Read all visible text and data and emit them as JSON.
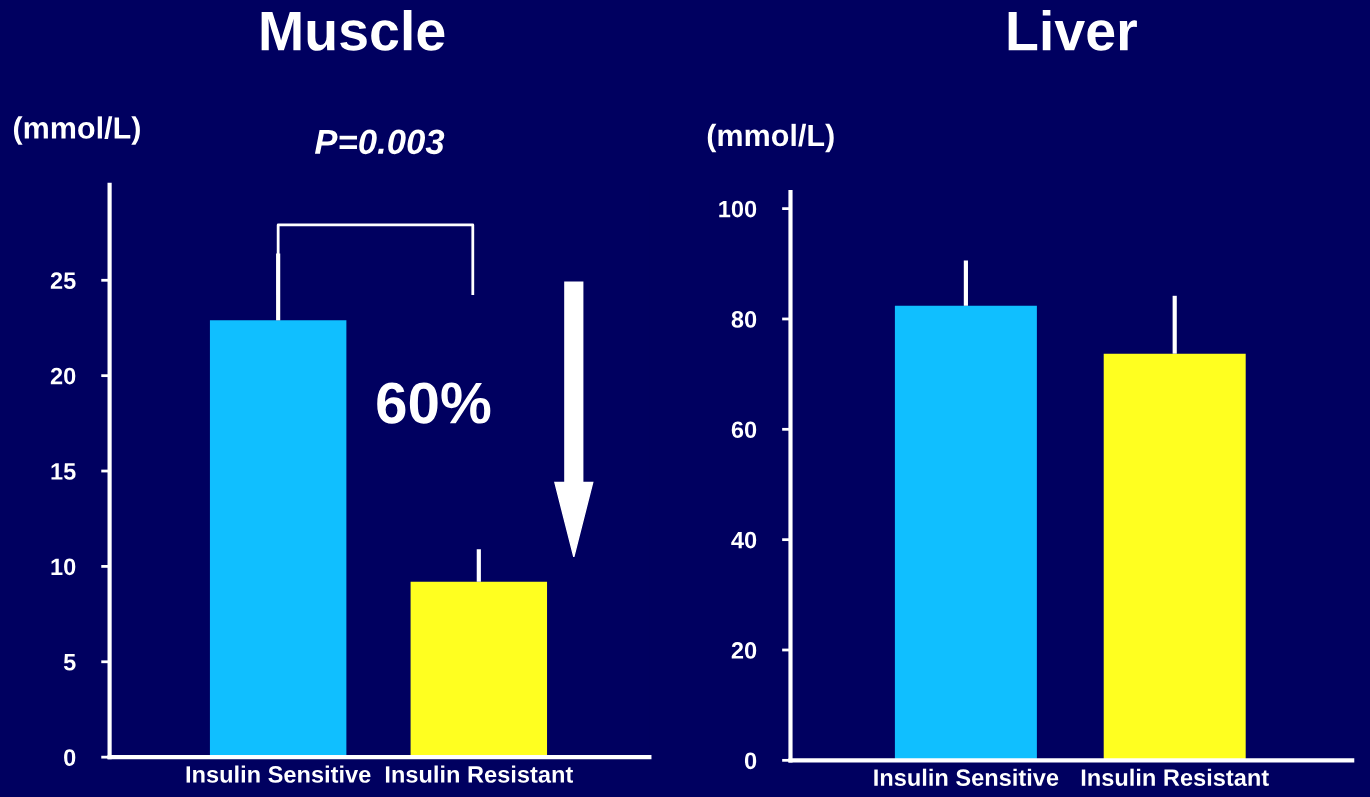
{
  "chart_data": [
    {
      "type": "bar",
      "title": "Muscle",
      "ylabel": "(mmol/L)",
      "categories": [
        "Insulin Sensitive",
        "Insulin Resistant"
      ],
      "values": [
        22.9,
        9.2
      ],
      "colors": [
        "#10bfff",
        "#ffff20"
      ],
      "errors": [
        [
          22.9,
          26.4
        ],
        [
          9.2,
          10.9
        ]
      ],
      "ylim": [
        0,
        30
      ],
      "yticks": [
        0,
        5,
        10,
        15,
        20,
        25
      ],
      "annotations": [
        "P=0.003",
        "60%"
      ],
      "grid": false,
      "legend": false
    },
    {
      "type": "bar",
      "title": "Liver",
      "ylabel": "(mmol/L)",
      "categories": [
        "Insulin Sensitive",
        "Insulin Resistant"
      ],
      "values": [
        82.4,
        73.7
      ],
      "colors": [
        "#10bfff",
        "#ffff20"
      ],
      "errors": [
        [
          82.4,
          90.6
        ],
        [
          73.7,
          84.2
        ]
      ],
      "ylim": [
        0,
        103
      ],
      "yticks": [
        0,
        20,
        40,
        60,
        80,
        100
      ],
      "grid": false,
      "legend": false
    }
  ]
}
